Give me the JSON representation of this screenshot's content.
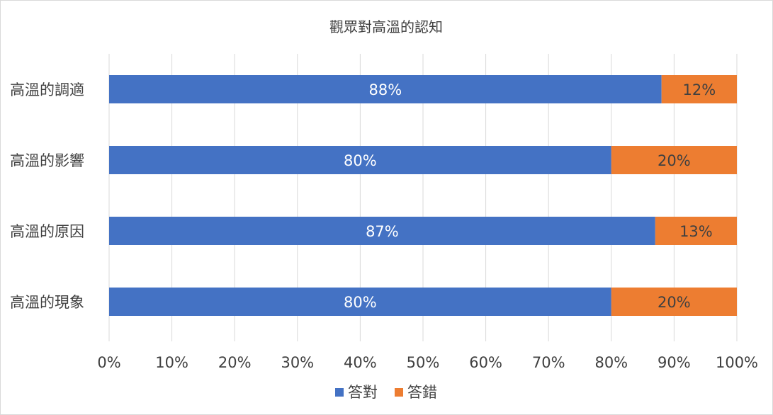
{
  "chart_data": {
    "type": "bar",
    "orientation": "horizontal",
    "stacked": true,
    "percent": true,
    "title": "觀眾對高溫的認知",
    "categories": [
      "高溫的調適",
      "高溫的影響",
      "高溫的原因",
      "高溫的現象"
    ],
    "series": [
      {
        "name": "答對",
        "color": "#4472C4",
        "values": [
          88,
          80,
          87,
          80
        ],
        "labels": [
          "88%",
          "80%",
          "87%",
          "80%"
        ],
        "label_color": "#ffffff"
      },
      {
        "name": "答錯",
        "color": "#ED7D31",
        "values": [
          12,
          20,
          13,
          20
        ],
        "labels": [
          "12%",
          "20%",
          "13%",
          "20%"
        ],
        "label_color": "#404040"
      }
    ],
    "xlim": [
      0,
      100
    ],
    "ticks": [
      "0%",
      "10%",
      "20%",
      "30%",
      "40%",
      "50%",
      "60%",
      "70%",
      "80%",
      "90%",
      "100%"
    ],
    "gridlines": true,
    "legend_position": "bottom"
  }
}
